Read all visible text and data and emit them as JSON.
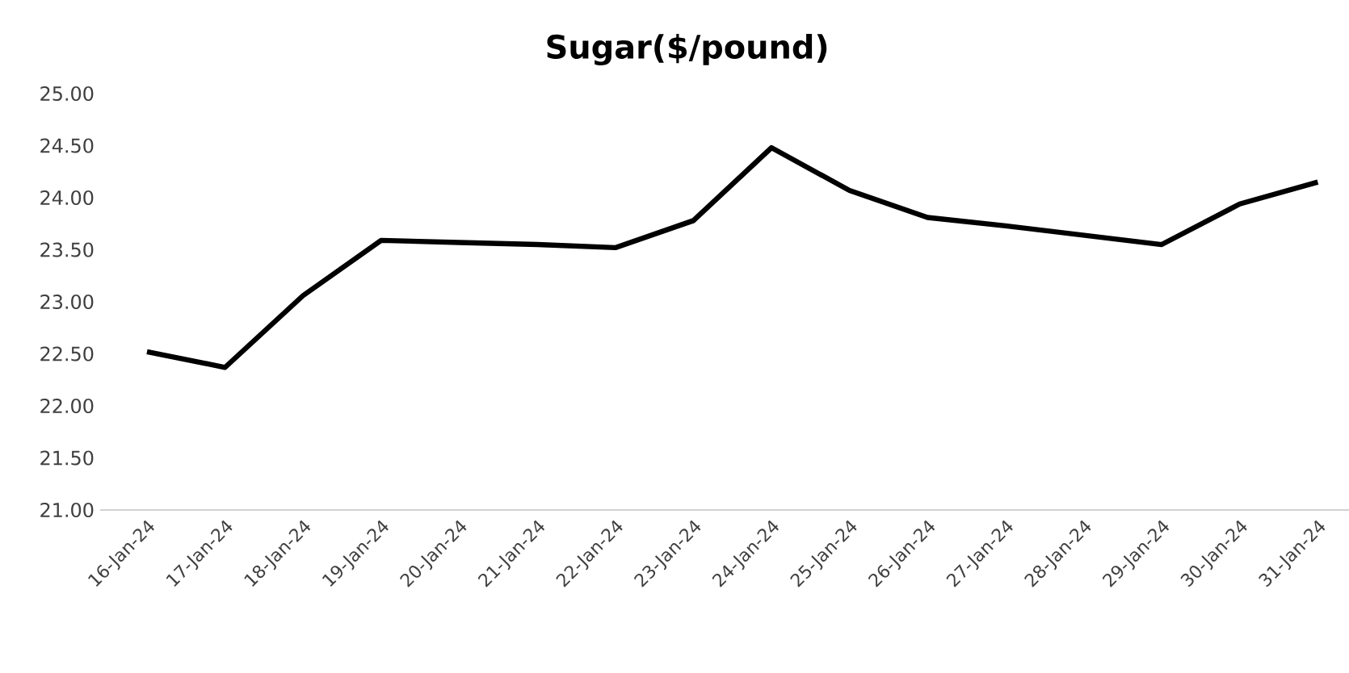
{
  "chart_data": {
    "type": "line",
    "title": "Sugar($/pound)",
    "categories": [
      "16-Jan-24",
      "17-Jan-24",
      "18-Jan-24",
      "19-Jan-24",
      "20-Jan-24",
      "21-Jan-24",
      "22-Jan-24",
      "23-Jan-24",
      "24-Jan-24",
      "25-Jan-24",
      "26-Jan-24",
      "27-Jan-24",
      "28-Jan-24",
      "29-Jan-24",
      "30-Jan-24",
      "31-Jan-24"
    ],
    "series": [
      {
        "color": "#000000",
        "values": [
          22.52,
          22.37,
          23.06,
          23.59,
          23.57,
          23.55,
          23.52,
          23.78,
          24.48,
          24.07,
          23.81,
          23.73,
          23.64,
          23.55,
          23.94,
          24.15
        ]
      }
    ],
    "ylim": [
      21,
      25
    ],
    "yticks": [
      {
        "value": 21,
        "label": "21.00"
      },
      {
        "value": 21.5,
        "label": "21.50"
      },
      {
        "value": 22,
        "label": "22.00"
      },
      {
        "value": 22.5,
        "label": "22.50"
      },
      {
        "value": 23,
        "label": "23.00"
      },
      {
        "value": 23.5,
        "label": "23.50"
      },
      {
        "value": 24,
        "label": "24.00"
      },
      {
        "value": 24.5,
        "label": "24.50"
      },
      {
        "value": 25,
        "label": "25.00"
      }
    ],
    "grid": false,
    "marker": "none",
    "line_style": "solid"
  }
}
